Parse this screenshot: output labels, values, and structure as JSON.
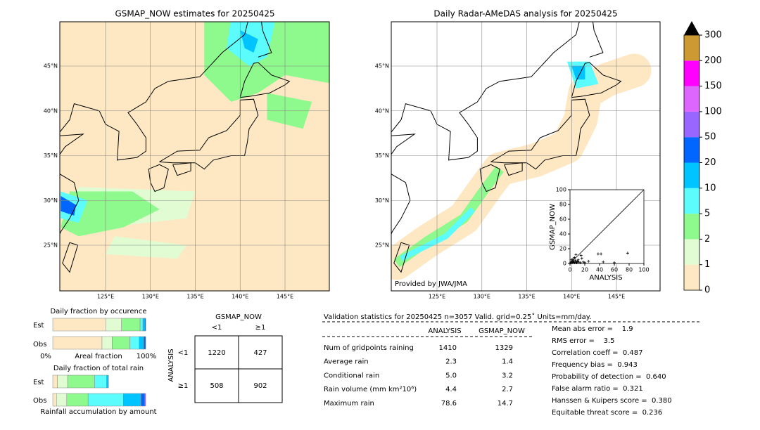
{
  "left_map": {
    "title": "GSMAP_NOW estimates for 20250425",
    "lat_labels": [
      "45°N",
      "40°N",
      "35°N",
      "30°N",
      "25°N"
    ],
    "lon_labels": [
      "125°E",
      "130°E",
      "135°E",
      "140°E",
      "145°E"
    ]
  },
  "right_map": {
    "title": "Daily Radar-AMeDAS analysis for 20250425",
    "lat_labels": [
      "45°N",
      "40°N",
      "35°N",
      "30°N",
      "25°N"
    ],
    "lon_labels": [
      "125°E",
      "130°E",
      "135°E",
      "140°E",
      "145°E"
    ],
    "credit": "Provided by JWA/JMA"
  },
  "colorbar": {
    "ticks": [
      0,
      1,
      2,
      5,
      10,
      20,
      50,
      100,
      150,
      200,
      300
    ],
    "colors": [
      "#fee8c3",
      "#e1fcd3",
      "#8ef98c",
      "#5cfcfc",
      "#00c4ff",
      "#0066ff",
      "#9966ff",
      "#dd66ff",
      "#ff00ff",
      "#cc9933"
    ]
  },
  "scatter": {
    "type": "scatter",
    "xlabel": "ANALYSIS",
    "ylabel": "GSMAP_NOW",
    "xlim": [
      0,
      100
    ],
    "ylim": [
      0,
      100
    ],
    "xticks": [
      0,
      20,
      40,
      60,
      80,
      100
    ],
    "yticks": [
      0,
      20,
      40,
      60,
      80,
      100
    ],
    "x": [
      1,
      2,
      3,
      4,
      5,
      6,
      7,
      8,
      9,
      10,
      12,
      14,
      15,
      18,
      20,
      2,
      4,
      6,
      3,
      8,
      11,
      38,
      42,
      78,
      25,
      45,
      60,
      16,
      5,
      9
    ],
    "y": [
      1,
      2,
      1,
      3,
      2,
      1,
      4,
      2,
      1,
      3,
      2,
      1,
      11,
      2,
      1,
      5,
      6,
      8,
      3,
      12,
      5,
      13,
      13,
      14,
      3,
      2,
      1,
      7,
      2,
      1
    ]
  },
  "fraction": {
    "title_occurrence": "Daily fraction by occurence",
    "title_total": "Daily fraction of total rain",
    "est": "Est",
    "obs": "Obs",
    "axis_min": "0%",
    "axis_label": "Areal fraction",
    "axis_max": "100%",
    "footer": "Rainfall accumulation by amount",
    "occurrence_est": [
      57,
      17,
      20,
      3,
      2,
      1
    ],
    "occurrence_obs": [
      53,
      11,
      19,
      10,
      5,
      2
    ],
    "total_est": [
      5,
      11,
      29,
      13,
      2
    ],
    "total_obs": [
      4,
      11,
      23,
      38,
      19,
      4,
      1
    ]
  },
  "contingency": {
    "title": "GSMAP_NOW",
    "columns": [
      "<1",
      "≥1"
    ],
    "rows": [
      "<1",
      "≥1"
    ],
    "axis": "ANALYSIS",
    "cells": [
      [
        1220,
        427
      ],
      [
        508,
        902
      ]
    ]
  },
  "stats": {
    "header": "Validation statistics for 20250425  n=3057 Valid. grid=0.25˚ Units=mm/day.",
    "columns": [
      "ANALYSIS",
      "GSMAP_NOW"
    ],
    "rows": [
      [
        "Num of gridpoints raining",
        "1410",
        "1329"
      ],
      [
        "Average rain",
        "2.3",
        "1.4"
      ],
      [
        "Conditional rain",
        "5.0",
        "3.2"
      ],
      [
        "Rain volume (mm km²10⁶)",
        "4.4",
        "2.7"
      ],
      [
        "Maximum rain",
        "78.6",
        "14.7"
      ]
    ],
    "scores": [
      "Mean abs error =    1.9",
      "RMS error =    3.5",
      "Correlation coeff =  0.487",
      "Frequency bias =  0.943",
      "Probability of detection =  0.640",
      "False alarm ratio =  0.321",
      "Hanssen & Kuipers score =  0.380",
      "Equitable threat score =  0.236"
    ]
  }
}
